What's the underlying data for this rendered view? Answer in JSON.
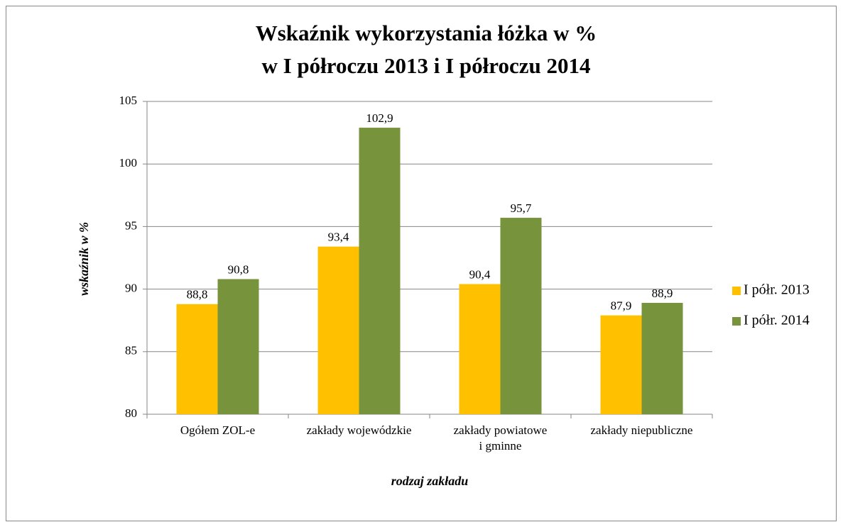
{
  "chart_data": {
    "type": "bar",
    "title": [
      "Wskaźnik wykorzystania łóżka w %",
      "w I półroczu 2013 i I półroczu 2014"
    ],
    "categories": [
      "Ogółem ZOL-e",
      "zakłady wojewódzkie",
      "zakłady powiatowe\ni gminne",
      "zakłady niepubliczne"
    ],
    "series": [
      {
        "name": "I półr. 2013",
        "color": "#ffc000",
        "values": [
          88.8,
          93.4,
          90.4,
          87.9
        ],
        "value_labels": [
          "88,8",
          "93,4",
          "90,4",
          "87,9"
        ]
      },
      {
        "name": "I półr. 2014",
        "color": "#77933c",
        "values": [
          90.8,
          102.9,
          95.7,
          88.9
        ],
        "value_labels": [
          "90,8",
          "102,9",
          "95,7",
          "88,9"
        ]
      }
    ],
    "xlabel": "rodzaj zakładu",
    "ylabel": "wskaźnik w %",
    "ylim": [
      80,
      105
    ],
    "yticks": [
      80,
      85,
      90,
      95,
      100,
      105
    ],
    "grid": true,
    "legend": "right"
  }
}
